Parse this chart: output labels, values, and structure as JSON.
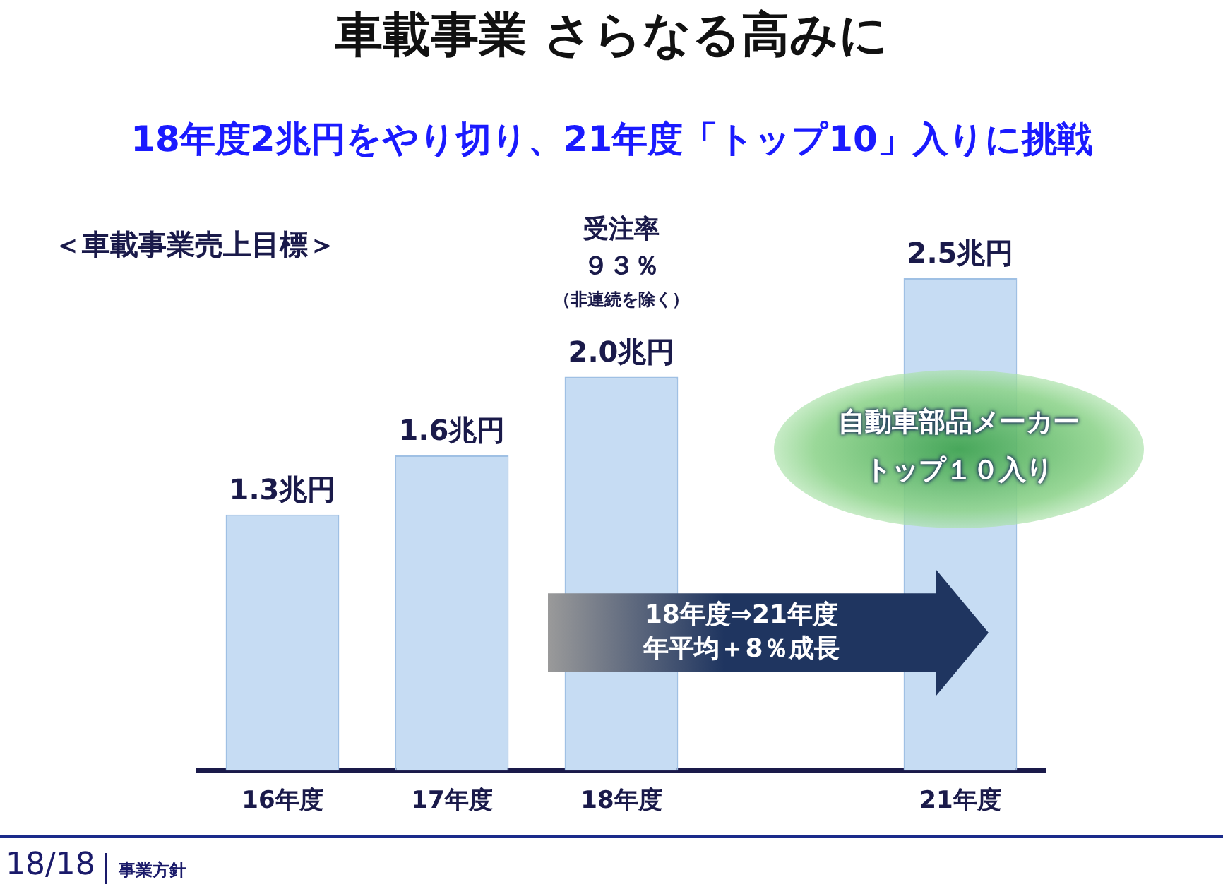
{
  "chart_data": {
    "type": "bar",
    "title": "車載事業 さらなる高みに",
    "subtitle": "18年度2兆円をやり切り、21年度「トップ10」入りに挑戦",
    "categories": [
      "16年度",
      "17年度",
      "18年度",
      null,
      "21年度"
    ],
    "values": [
      1.3,
      1.6,
      2.0,
      null,
      2.5
    ],
    "value_labels": [
      "1.3兆円",
      "1.6兆円",
      "2.0兆円",
      null,
      "2.5兆円"
    ],
    "color": "#c6dcf3",
    "tick_labels": "x",
    "grid": false,
    "annotations": [
      "＜車載事業売上目標＞",
      "受注率",
      "９３％",
      "（非連続を除く）",
      "自動車部品メーカートップ１０入り",
      "18年度⇒21年度",
      "年平均＋8％成長",
      "18/18",
      "事業方針"
    ]
  }
}
